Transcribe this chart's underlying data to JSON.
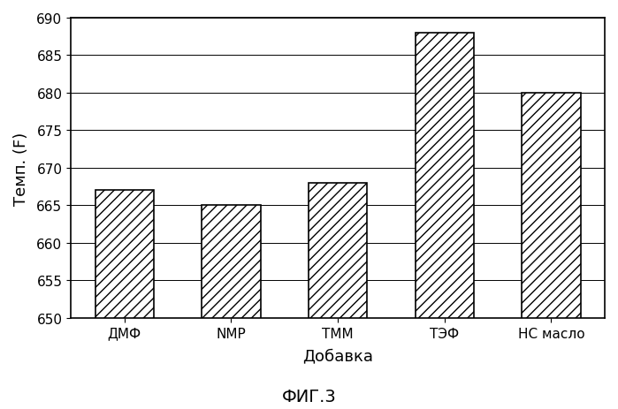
{
  "categories": [
    "ДМФ",
    "NMP",
    "ТММ",
    "ТЭФ",
    "НС масло"
  ],
  "values": [
    667,
    665,
    668,
    688,
    680
  ],
  "xlabel": "Добавка",
  "ylabel": "Темп. (F)",
  "caption": "ФИГ.3",
  "ylim": [
    650,
    690
  ],
  "yticks": [
    650,
    655,
    660,
    665,
    670,
    675,
    680,
    685,
    690
  ],
  "bar_color": "#ffffff",
  "bar_edgecolor": "#000000",
  "hatch": "///",
  "label_fontsize": 13,
  "tick_fontsize": 11,
  "caption_fontsize": 14,
  "background_color": "#ffffff"
}
